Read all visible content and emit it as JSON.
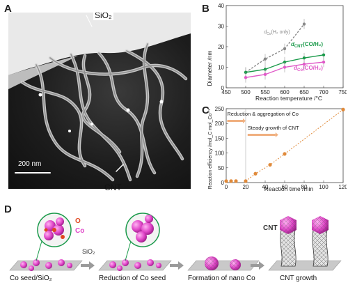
{
  "panels": {
    "a": "A",
    "b": "B",
    "c": "C",
    "d": "D"
  },
  "panelA": {
    "sio2_label": "SiO₂",
    "cnt_label": "CNT",
    "scalebar": "200 nm"
  },
  "chart_data": [
    {
      "type": "line",
      "panel": "B",
      "xlabel": "Reaction temperature /°C",
      "ylabel": "Diameter /nm",
      "xlim": [
        450,
        750
      ],
      "ylim": [
        0,
        40
      ],
      "xticks": [
        450,
        500,
        550,
        600,
        650,
        700,
        750
      ],
      "yticks": [
        0,
        10,
        20,
        30,
        40
      ],
      "series": [
        {
          "name": "dCo(H2 only)",
          "name_main": "d",
          "name_sub": "Co",
          "name_tail": "(H₂ only)",
          "color": "#888888",
          "style": "dashed",
          "x": [
            500,
            550,
            600,
            650
          ],
          "y": [
            7.5,
            14,
            19,
            31
          ]
        },
        {
          "name": "dCNT(CO/H2)",
          "name_main": "d",
          "name_sub": "CNT",
          "name_tail": "(CO/H₂)",
          "color": "#1a9a4a",
          "style": "solid",
          "x": [
            500,
            550,
            600,
            650,
            700
          ],
          "y": [
            7.5,
            9,
            12.5,
            14.5,
            16
          ]
        },
        {
          "name": "dCo(CO/H2)",
          "name_main": "d",
          "name_sub": "Co",
          "name_tail": "(CO/H₂)",
          "color": "#e05ac8",
          "style": "solid",
          "x": [
            500,
            550,
            600,
            650,
            700
          ],
          "y": [
            5,
            6.5,
            10,
            11.5,
            12.5
          ]
        }
      ]
    },
    {
      "type": "scatter",
      "panel": "C",
      "xlabel": "Reaction time /min",
      "ylabel": "Reaction efficiency /mol_C mol_Co⁻¹",
      "xlim": [
        0,
        120
      ],
      "ylim": [
        0,
        250
      ],
      "xticks": [
        0,
        20,
        40,
        60,
        80,
        100,
        120
      ],
      "yticks": [
        0,
        50,
        100,
        150,
        200,
        250
      ],
      "annotations": [
        "Reduction & aggregation of Co",
        "Steady growth of CNT"
      ],
      "series": [
        {
          "color": "#e08a3a",
          "x": [
            0,
            5,
            10,
            20,
            30,
            45,
            60,
            120
          ],
          "y": [
            5,
            5,
            5,
            5,
            30,
            60,
            97,
            247
          ]
        }
      ]
    }
  ],
  "panelD": {
    "labels": {
      "o": "O",
      "co": "Co",
      "sio2": "SiO₂",
      "cnt": "CNT"
    },
    "steps": [
      "Co seed/SiO₂",
      "Reduction of Co seed",
      "Formation of nano Co",
      "CNT growth"
    ]
  }
}
